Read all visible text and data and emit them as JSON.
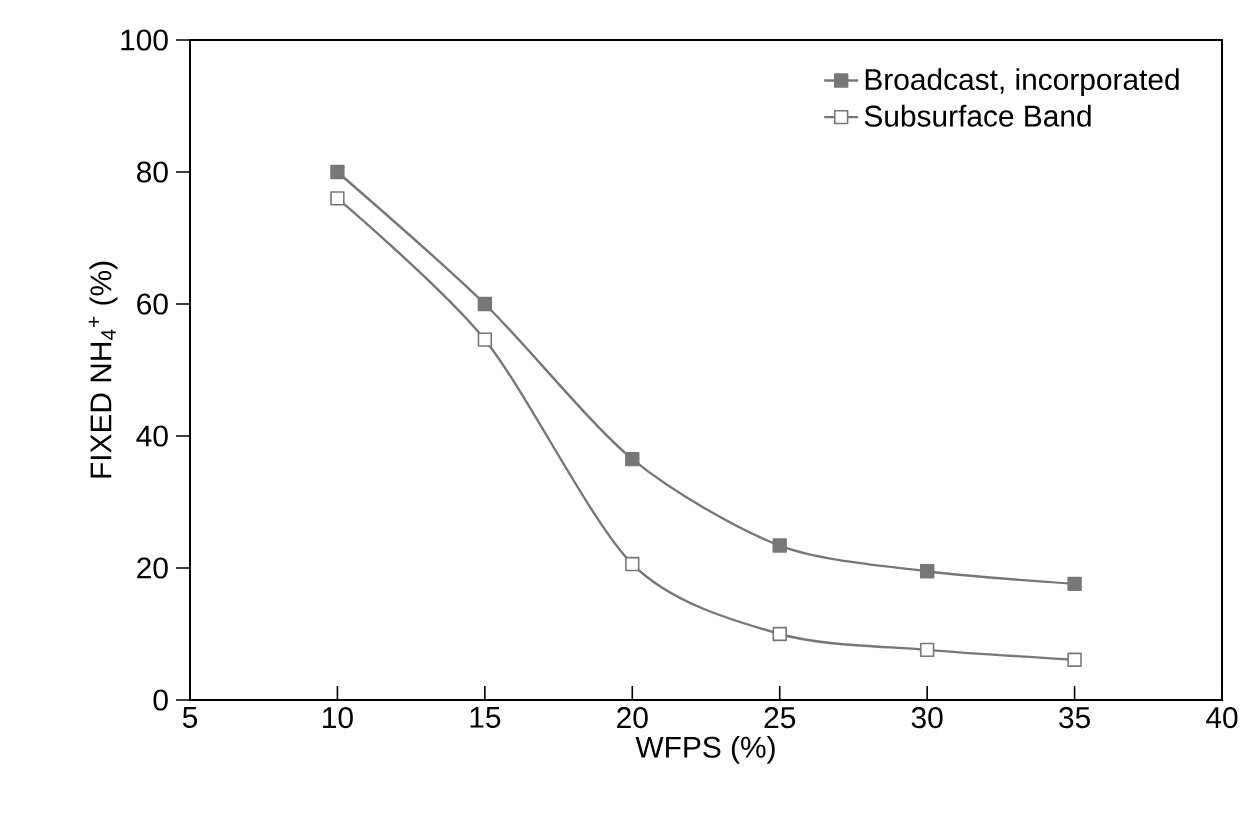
{
  "chart_data": {
    "type": "line",
    "xlabel": "WFPS (%)",
    "ylabel": "FIXED NH$_{4}$$^{+}$ (%)",
    "x": [
      10,
      15,
      20,
      25,
      30,
      35
    ],
    "series": [
      {
        "name": "Broadcast, incorporated",
        "color": "#777777",
        "values": [
          80,
          60,
          36.5,
          23.4,
          19.5,
          17.6
        ]
      },
      {
        "name": "Subsurface Band",
        "color": "#777777",
        "values": [
          76,
          54.6,
          20.6,
          10,
          7.6,
          6.1
        ]
      }
    ],
    "xlim": [
      5,
      40
    ],
    "xticks": [
      5,
      10,
      15,
      20,
      25,
      30,
      35,
      40
    ],
    "ylim": [
      0,
      100
    ],
    "yticks": [
      0,
      20,
      40,
      60,
      80,
      100
    ],
    "grid": false,
    "legend": "top right",
    "marker": "square",
    "line_style": "solid"
  }
}
